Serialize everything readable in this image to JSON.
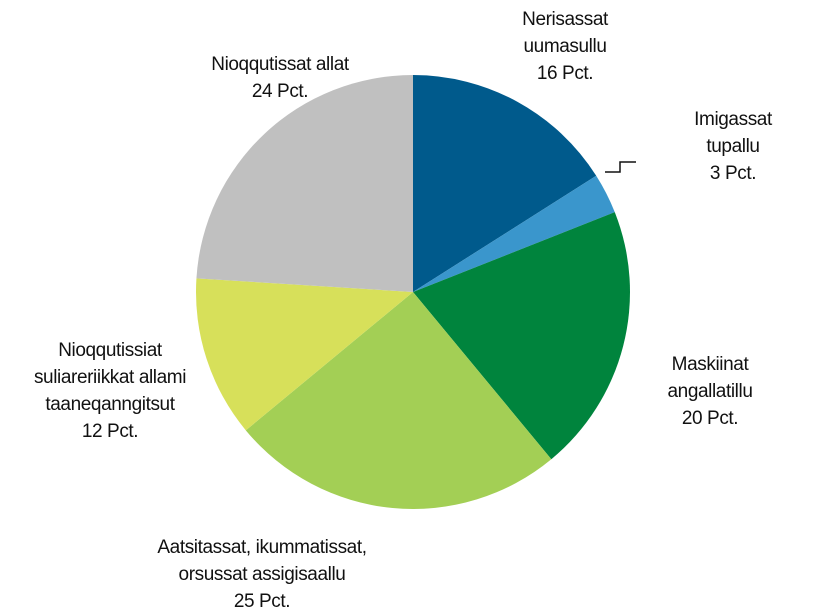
{
  "chart_data": {
    "type": "pie",
    "categories": [
      "Nerisassat\nuumasullu",
      "Imigassat tupallu",
      "Maskiinat\nangallatillu",
      "Aatsitassat, ikummatissat,\norsussat assigisaallu",
      "Nioqqutissiat\nsuliareriikkat allami\ntaaneqanngitsut",
      "Nioqqutissat allat"
    ],
    "values": [
      16,
      3,
      20,
      25,
      12,
      24
    ],
    "value_labels": [
      "16 Pct.",
      "3 Pct.",
      "20 Pct.",
      "25 Pct.",
      "12 Pct.",
      "24 Pct."
    ],
    "colors": [
      "#005a8c",
      "#3a96cc",
      "#00843d",
      "#a3cf55",
      "#d7e05a",
      "#c0c0c0"
    ]
  }
}
